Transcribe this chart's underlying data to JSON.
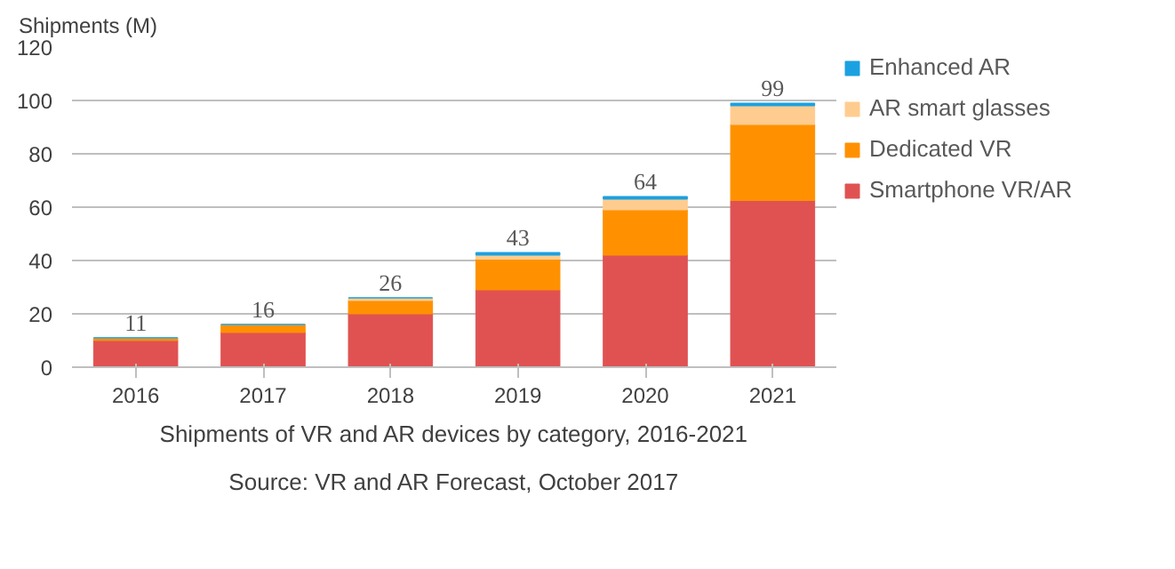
{
  "chart_data": {
    "type": "bar",
    "stacked": true,
    "ylabel": "Shipments (M)",
    "categories": [
      "2016",
      "2017",
      "2018",
      "2019",
      "2020",
      "2021"
    ],
    "series": [
      {
        "name": "Smartphone VR/AR",
        "color": "#e05252",
        "values": [
          10,
          13,
          20,
          29,
          42,
          62.5
        ]
      },
      {
        "name": "Dedicated VR",
        "color": "#ff9100",
        "values": [
          1,
          3,
          5,
          11.5,
          17,
          28.5
        ]
      },
      {
        "name": "AR smart glasses",
        "color": "#ffcc8f",
        "values": [
          0,
          0,
          1,
          1.5,
          4,
          7
        ]
      },
      {
        "name": "Enhanced AR",
        "color": "#1ba1e2",
        "values": [
          0,
          0,
          0,
          1,
          1,
          1
        ]
      }
    ],
    "totals": [
      "11",
      "16",
      "26",
      "43",
      "64",
      "99"
    ],
    "ylim": [
      0,
      120
    ],
    "yticks": [
      0,
      20,
      40,
      60,
      80,
      100,
      120
    ],
    "grid": "y",
    "legend": "right",
    "annotations": [
      "Shipments of VR and AR devices by category, 2016-2021",
      "Source: VR and AR Forecast, October 2017"
    ]
  }
}
